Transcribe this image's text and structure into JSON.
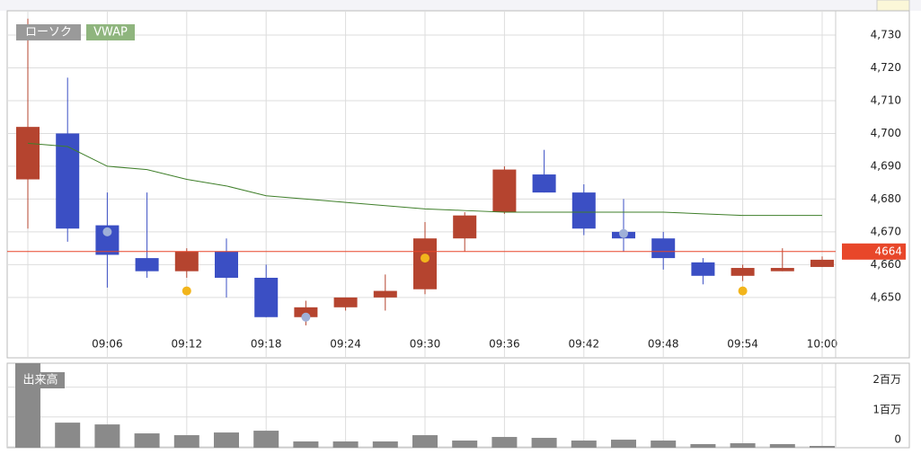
{
  "chart_data": {
    "type": "candlestick",
    "name": "ローソク",
    "categories": [
      null,
      null,
      "09:06",
      null,
      "09:12",
      null,
      "09:18",
      null,
      "09:24",
      null,
      "09:30",
      null,
      "09:36",
      null,
      "09:42",
      null,
      "09:48",
      null,
      "09:54",
      null,
      "10:00"
    ],
    "open": [
      4686,
      4700,
      4672,
      4662,
      4658,
      4664,
      4656,
      4644,
      4647,
      4650,
      4652.5,
      4668,
      4676,
      4687.5,
      4682,
      4670,
      4668,
      4660.7,
      4656.6,
      4658,
      4659.3
    ],
    "high": [
      4735,
      4717,
      4682,
      4682,
      4665,
      4668,
      4660,
      4649,
      4650,
      4657,
      4673,
      4676,
      4690,
      4695,
      4684.5,
      4680,
      4670,
      4662,
      4660,
      4665,
      4662.5
    ],
    "low": [
      4671,
      4667,
      4653,
      4656,
      4656,
      4650,
      4644,
      4641.5,
      4646,
      4646,
      4651,
      4664,
      4675.5,
      4682,
      4669,
      4664,
      4658.5,
      4654,
      4655,
      4658,
      4659.3
    ],
    "close": [
      4702,
      4671,
      4663,
      4658,
      4664,
      4656,
      4644,
      4647,
      4650,
      4652,
      4668,
      4675,
      4689,
      4682,
      4671,
      4668,
      4662,
      4656.6,
      4659,
      4659,
      4661.5
    ],
    "up_color": "#b5442f",
    "down_color": "#3b4fc4",
    "vwap": {
      "name": "VWAP",
      "color": "#3f7f2a",
      "values": [
        4697,
        4696,
        4690,
        4689,
        4686,
        4684,
        4681,
        4680,
        4679,
        4678,
        4677,
        4676.5,
        4676,
        4676,
        4676,
        4676,
        4676,
        4675.5,
        4675,
        4675,
        4675
      ]
    },
    "markers": [
      {
        "index": 2,
        "value": 4670,
        "color": "#9fb0d8"
      },
      {
        "index": 7,
        "value": 4644,
        "color": "#9fb0d8"
      },
      {
        "index": 15,
        "value": 4669.5,
        "color": "#9fb0d8"
      },
      {
        "index": 4,
        "value": 4652,
        "color": "#f2b51c"
      },
      {
        "index": 10,
        "value": 4662,
        "color": "#f2b51c"
      },
      {
        "index": 18,
        "value": 4652,
        "color": "#f2b51c"
      }
    ],
    "last_price": {
      "value": 4664,
      "color": "#e8472a"
    },
    "ylim": [
      4631.6,
      4737.4
    ],
    "yticks": [
      {
        "value": 4650,
        "label": "4,650"
      },
      {
        "value": 4660,
        "label": "4,660"
      },
      {
        "value": 4670,
        "label": "4,670"
      },
      {
        "value": 4680,
        "label": "4,680"
      },
      {
        "value": 4690,
        "label": "4,690"
      },
      {
        "value": 4700,
        "label": "4,700"
      },
      {
        "value": 4710,
        "label": "4,710"
      },
      {
        "value": 4720,
        "label": "4,720"
      },
      {
        "value": 4730,
        "label": "4,730"
      }
    ],
    "volume": {
      "type": "bar",
      "label": "出来高",
      "color": "#8a8a8a",
      "values": [
        2.9,
        0.81,
        0.75,
        0.45,
        0.39,
        0.48,
        0.54,
        0.18,
        0.18,
        0.18,
        0.39,
        0.21,
        0.33,
        0.3,
        0.21,
        0.24,
        0.21,
        0.09,
        0.12,
        0.09,
        0.03
      ],
      "ylim": [
        0,
        2.8
      ],
      "yticks": [
        0,
        {
          "value": 1,
          "label": "1百万"
        },
        {
          "value": 2,
          "label": "2百万"
        }
      ]
    }
  }
}
